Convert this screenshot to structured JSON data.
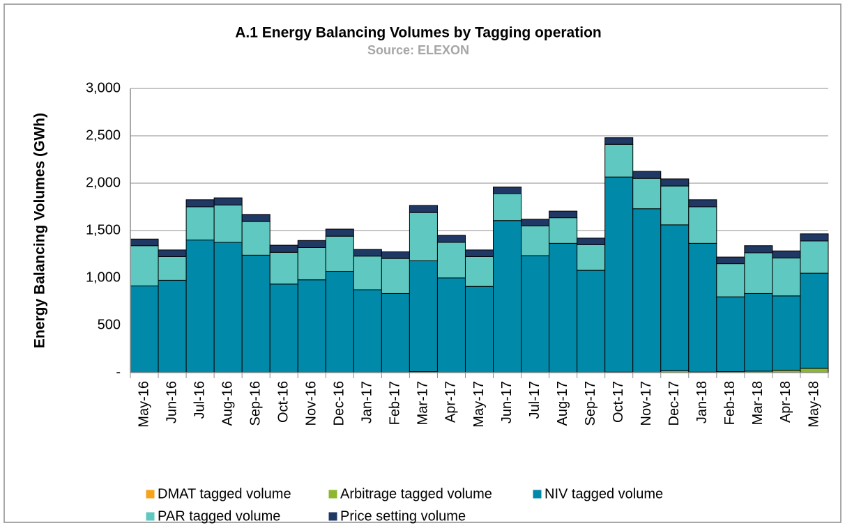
{
  "chart_data": {
    "type": "stacked_bar",
    "title": "A.1 Energy Balancing Volumes by Tagging operation",
    "subtitle": "Source: ELEXON",
    "y_label": "Energy Balancing Volumes (GWh)",
    "categories": [
      "May-16",
      "Jun-16",
      "Jul-16",
      "Aug-16",
      "Sep-16",
      "Oct-16",
      "Nov-16",
      "Dec-16",
      "Jan-17",
      "Feb-17",
      "Mar-17",
      "Apr-17",
      "May-17",
      "Jun-17",
      "Jul-17",
      "Aug-17",
      "Sep-17",
      "Oct-17",
      "Nov-17",
      "Dec-17",
      "Jan-18",
      "Feb-18",
      "Mar-18",
      "Apr-18",
      "May-18"
    ],
    "series": [
      {
        "name": "DMAT tagged volume",
        "color": "#f7a21b",
        "values": [
          0,
          0,
          0,
          0,
          0,
          0,
          0,
          0,
          0,
          0,
          0,
          0,
          0,
          0,
          0,
          0,
          0,
          0,
          0,
          0,
          0,
          0,
          0,
          0,
          0
        ]
      },
      {
        "name": "Arbitrage tagged volume",
        "color": "#8db82d",
        "values": [
          0,
          0,
          0,
          0,
          0,
          0,
          0,
          0,
          0,
          0,
          10,
          0,
          0,
          0,
          0,
          0,
          0,
          5,
          0,
          20,
          5,
          10,
          15,
          25,
          45
        ]
      },
      {
        "name": "NIV tagged volume",
        "color": "#0089a8",
        "values": [
          915,
          975,
          1400,
          1375,
          1240,
          935,
          980,
          1070,
          875,
          835,
          1170,
          1000,
          910,
          1605,
          1235,
          1365,
          1080,
          2060,
          1730,
          1540,
          1360,
          790,
          820,
          785,
          1005
        ]
      },
      {
        "name": "PAR tagged volume",
        "color": "#5fc8c0",
        "values": [
          425,
          250,
          350,
          395,
          355,
          335,
          340,
          370,
          355,
          370,
          510,
          375,
          315,
          285,
          315,
          270,
          270,
          345,
          320,
          410,
          385,
          350,
          430,
          400,
          340
        ]
      },
      {
        "name": "Price setting volume",
        "color": "#1f3864",
        "values": [
          70,
          70,
          75,
          75,
          75,
          75,
          75,
          75,
          70,
          70,
          75,
          75,
          70,
          70,
          70,
          70,
          70,
          70,
          75,
          75,
          75,
          70,
          75,
          75,
          75
        ]
      }
    ],
    "ylim": [
      0,
      3000
    ],
    "yticks": [
      {
        "value": 0,
        "label": "-"
      },
      500,
      {
        "value": 1000,
        "label": "1,000"
      },
      {
        "value": 1500,
        "label": "1,500"
      },
      {
        "value": 2000,
        "label": "2,000"
      },
      {
        "value": 2500,
        "label": "2,500"
      },
      {
        "value": 3000,
        "label": "3,000"
      }
    ],
    "grid": true
  }
}
